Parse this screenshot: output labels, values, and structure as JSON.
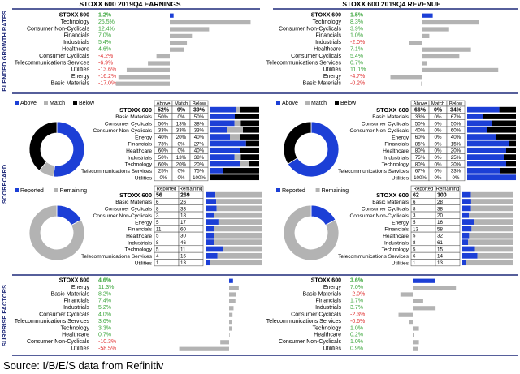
{
  "titles": {
    "earnings": "STOXX 600 2019Q4 EARNINGS",
    "revenue": "STOXX 600 2019Q4 REVENUE"
  },
  "section_labels": {
    "growth": "BLENDED GROWTH RATES",
    "scorecard": "SCORECARD",
    "surprise": "SURPRISE FACTORS"
  },
  "legends": {
    "above": "Above",
    "match": "Match",
    "below": "Below",
    "reported": "Reported",
    "remaining": "Remaining"
  },
  "colors": {
    "navy": "#1f2a7a",
    "blue": "#1c3fd6",
    "grey": "#b3b3b3",
    "black": "#000000",
    "positive_text": "#3aa53a",
    "negative_text": "#e03030"
  },
  "footer": "Source: I/B/E/S data from Refinitiv",
  "chart_data": [
    {
      "type": "bar",
      "title": "STOXX 600 2019Q4 EARNINGS",
      "section": "BLENDED GROWTH RATES",
      "categories": [
        "STOXX 600",
        "Technology",
        "Consumer Non-Cyclicals",
        "Financials",
        "Industrials",
        "Healthcare",
        "Consumer Cyclicals",
        "Telecommunications Services",
        "Utilities",
        "Energy",
        "Basic Materials"
      ],
      "value_labels": [
        "1.2%",
        "25.5%",
        "12.4%",
        "7.0%",
        "5.4%",
        "4.6%",
        "-4.2%",
        "-6.9%",
        "-13.6%",
        "-16.2%",
        "-17.0%"
      ],
      "values": [
        1.2,
        25.5,
        12.4,
        7.0,
        5.4,
        4.6,
        -4.2,
        -6.9,
        -13.6,
        -16.2,
        -17.0
      ]
    },
    {
      "type": "bar",
      "title": "STOXX 600 2019Q4 REVENUE",
      "section": "BLENDED GROWTH RATES",
      "categories": [
        "STOXX 600",
        "Technology",
        "Consumer Non-Cyclicals",
        "Financials",
        "Industrials",
        "Healthcare",
        "Consumer Cyclicals",
        "Telecommunications Services",
        "Utilities",
        "Energy",
        "Basic Materials"
      ],
      "value_labels": [
        "1.5%",
        "8.3%",
        "3.9%",
        "1.0%",
        "-2.0%",
        "7.1%",
        "5.4%",
        "0.7%",
        "11.1%",
        "-4.7%",
        "-0.2%"
      ],
      "values": [
        1.5,
        8.3,
        3.9,
        1.0,
        -2.0,
        7.1,
        5.4,
        0.7,
        11.1,
        -4.7,
        -0.2
      ]
    },
    {
      "type": "pie",
      "section": "SCORECARD",
      "panel": "earnings",
      "labels": [
        "Above",
        "Match",
        "Below"
      ],
      "values": [
        52,
        9,
        39
      ]
    },
    {
      "type": "table",
      "section": "SCORECARD",
      "panel": "earnings",
      "columns": [
        "Above",
        "Match",
        "Below"
      ],
      "rows": [
        {
          "name": "STOXX 600",
          "vals": [
            "52%",
            "9%",
            "39%"
          ],
          "num": [
            52,
            9,
            39
          ]
        },
        {
          "name": "Basic Materials",
          "vals": [
            "50%",
            "0%",
            "50%"
          ],
          "num": [
            50,
            0,
            50
          ]
        },
        {
          "name": "Consumer Cyclicals",
          "vals": [
            "50%",
            "13%",
            "38%"
          ],
          "num": [
            50,
            13,
            38
          ]
        },
        {
          "name": "Consumer Non-Cyclicals",
          "vals": [
            "33%",
            "33%",
            "33%"
          ],
          "num": [
            33,
            33,
            33
          ]
        },
        {
          "name": "Energy",
          "vals": [
            "40%",
            "20%",
            "40%"
          ],
          "num": [
            40,
            20,
            40
          ]
        },
        {
          "name": "Financials",
          "vals": [
            "73%",
            "0%",
            "27%"
          ],
          "num": [
            73,
            0,
            27
          ]
        },
        {
          "name": "Healthcare",
          "vals": [
            "60%",
            "0%",
            "40%"
          ],
          "num": [
            60,
            0,
            40
          ]
        },
        {
          "name": "Industrials",
          "vals": [
            "50%",
            "13%",
            "38%"
          ],
          "num": [
            50,
            13,
            38
          ]
        },
        {
          "name": "Technology",
          "vals": [
            "60%",
            "20%",
            "20%"
          ],
          "num": [
            60,
            20,
            20
          ]
        },
        {
          "name": "Telecommunications Services",
          "vals": [
            "25%",
            "0%",
            "75%"
          ],
          "num": [
            25,
            0,
            75
          ]
        },
        {
          "name": "Utilities",
          "vals": [
            "0%",
            "0%",
            "100%"
          ],
          "num": [
            0,
            0,
            100
          ]
        }
      ]
    },
    {
      "type": "pie",
      "section": "SCORECARD",
      "panel": "revenue",
      "labels": [
        "Above",
        "Match",
        "Below"
      ],
      "values": [
        66,
        0,
        34
      ]
    },
    {
      "type": "table",
      "section": "SCORECARD",
      "panel": "revenue",
      "columns": [
        "Above",
        "Match",
        "Below"
      ],
      "rows": [
        {
          "name": "STOXX 600",
          "vals": [
            "66%",
            "0%",
            "34%"
          ],
          "num": [
            66,
            0,
            34
          ]
        },
        {
          "name": "Basic Materials",
          "vals": [
            "33%",
            "0%",
            "67%"
          ],
          "num": [
            33,
            0,
            67
          ]
        },
        {
          "name": "Consumer Cyclicals",
          "vals": [
            "50%",
            "0%",
            "50%"
          ],
          "num": [
            50,
            0,
            50
          ]
        },
        {
          "name": "Consumer Non-Cyclicals",
          "vals": [
            "40%",
            "0%",
            "60%"
          ],
          "num": [
            40,
            0,
            60
          ]
        },
        {
          "name": "Energy",
          "vals": [
            "60%",
            "0%",
            "40%"
          ],
          "num": [
            60,
            0,
            40
          ]
        },
        {
          "name": "Financials",
          "vals": [
            "85%",
            "0%",
            "15%"
          ],
          "num": [
            85,
            0,
            15
          ]
        },
        {
          "name": "Healthcare",
          "vals": [
            "80%",
            "0%",
            "20%"
          ],
          "num": [
            80,
            0,
            20
          ]
        },
        {
          "name": "Industrials",
          "vals": [
            "75%",
            "0%",
            "25%"
          ],
          "num": [
            75,
            0,
            25
          ]
        },
        {
          "name": "Technology",
          "vals": [
            "80%",
            "0%",
            "20%"
          ],
          "num": [
            80,
            0,
            20
          ]
        },
        {
          "name": "Telecommunications Services",
          "vals": [
            "67%",
            "0%",
            "33%"
          ],
          "num": [
            67,
            0,
            33
          ]
        },
        {
          "name": "Utilities",
          "vals": [
            "100%",
            "0%",
            "0%"
          ],
          "num": [
            100,
            0,
            0
          ]
        }
      ]
    },
    {
      "type": "pie",
      "section": "SCORECARD",
      "panel": "earnings-reported",
      "labels": [
        "Reported",
        "Remaining"
      ],
      "values": [
        56,
        269
      ]
    },
    {
      "type": "table",
      "section": "SCORECARD",
      "panel": "earnings-reported",
      "columns": [
        "Reported",
        "Remaining"
      ],
      "rows": [
        {
          "name": "STOXX 600",
          "vals": [
            "56",
            "269"
          ],
          "num": [
            56,
            269
          ]
        },
        {
          "name": "Basic Materials",
          "vals": [
            "6",
            "26"
          ],
          "num": [
            6,
            26
          ]
        },
        {
          "name": "Consumer Cyclicals",
          "vals": [
            "8",
            "33"
          ],
          "num": [
            8,
            33
          ]
        },
        {
          "name": "Consumer Non-Cyclicals",
          "vals": [
            "3",
            "18"
          ],
          "num": [
            3,
            18
          ]
        },
        {
          "name": "Energy",
          "vals": [
            "5",
            "17"
          ],
          "num": [
            5,
            17
          ]
        },
        {
          "name": "Financials",
          "vals": [
            "11",
            "60"
          ],
          "num": [
            11,
            60
          ]
        },
        {
          "name": "Healthcare",
          "vals": [
            "5",
            "30"
          ],
          "num": [
            5,
            30
          ]
        },
        {
          "name": "Industrials",
          "vals": [
            "8",
            "46"
          ],
          "num": [
            8,
            46
          ]
        },
        {
          "name": "Technology",
          "vals": [
            "5",
            "11"
          ],
          "num": [
            5,
            11
          ]
        },
        {
          "name": "Telecommunications Services",
          "vals": [
            "4",
            "15"
          ],
          "num": [
            4,
            15
          ]
        },
        {
          "name": "Utilities",
          "vals": [
            "1",
            "13"
          ],
          "num": [
            1,
            13
          ]
        }
      ]
    },
    {
      "type": "pie",
      "section": "SCORECARD",
      "panel": "revenue-reported",
      "labels": [
        "Reported",
        "Remaining"
      ],
      "values": [
        62,
        300
      ]
    },
    {
      "type": "table",
      "section": "SCORECARD",
      "panel": "revenue-reported",
      "columns": [
        "Reported",
        "Remaining"
      ],
      "rows": [
        {
          "name": "STOXX 600",
          "vals": [
            "62",
            "300"
          ],
          "num": [
            62,
            300
          ]
        },
        {
          "name": "Basic Materials",
          "vals": [
            "6",
            "28"
          ],
          "num": [
            6,
            28
          ]
        },
        {
          "name": "Consumer Cyclicals",
          "vals": [
            "8",
            "38"
          ],
          "num": [
            8,
            38
          ]
        },
        {
          "name": "Consumer Non-Cyclicals",
          "vals": [
            "3",
            "20"
          ],
          "num": [
            3,
            20
          ]
        },
        {
          "name": "Energy",
          "vals": [
            "5",
            "16"
          ],
          "num": [
            5,
            16
          ]
        },
        {
          "name": "Financials",
          "vals": [
            "13",
            "58"
          ],
          "num": [
            13,
            58
          ]
        },
        {
          "name": "Healthcare",
          "vals": [
            "5",
            "32"
          ],
          "num": [
            5,
            32
          ]
        },
        {
          "name": "Industrials",
          "vals": [
            "8",
            "61"
          ],
          "num": [
            8,
            61
          ]
        },
        {
          "name": "Technology",
          "vals": [
            "5",
            "15"
          ],
          "num": [
            5,
            15
          ]
        },
        {
          "name": "Telecommunications Services",
          "vals": [
            "6",
            "14"
          ],
          "num": [
            6,
            14
          ]
        },
        {
          "name": "Utilities",
          "vals": [
            "1",
            "13"
          ],
          "num": [
            1,
            13
          ]
        }
      ]
    },
    {
      "type": "bar",
      "section": "SURPRISE FACTORS",
      "panel": "earnings",
      "categories": [
        "STOXX 600",
        "Energy",
        "Basic Materials",
        "Financials",
        "Industrials",
        "Consumer Cyclicals",
        "Telecommunications Services",
        "Technology",
        "Healthcare",
        "Consumer Non-Cyclicals",
        "Utilities"
      ],
      "value_labels": [
        "4.6%",
        "11.3%",
        "8.2%",
        "7.4%",
        "5.2%",
        "4.0%",
        "3.6%",
        "3.3%",
        "0.7%",
        "-10.3%",
        "-58.5%"
      ],
      "values": [
        4.6,
        11.3,
        8.2,
        7.4,
        5.2,
        4.0,
        3.6,
        3.3,
        0.7,
        -10.3,
        -58.5
      ]
    },
    {
      "type": "bar",
      "section": "SURPRISE FACTORS",
      "panel": "revenue",
      "categories": [
        "STOXX 600",
        "Energy",
        "Basic Materials",
        "Financials",
        "Industrials",
        "Consumer Cyclicals",
        "Telecommunications Services",
        "Technology",
        "Healthcare",
        "Consumer Non-Cyclicals",
        "Utilities"
      ],
      "value_labels": [
        "3.6%",
        "7.0%",
        "-2.0%",
        "1.7%",
        "3.7%",
        "-2.3%",
        "-0.6%",
        "1.0%",
        "0.2%",
        "1.0%",
        "0.9%"
      ],
      "values": [
        3.6,
        7.0,
        -2.0,
        1.7,
        3.7,
        -2.3,
        -0.6,
        1.0,
        0.2,
        1.0,
        0.9
      ]
    }
  ]
}
